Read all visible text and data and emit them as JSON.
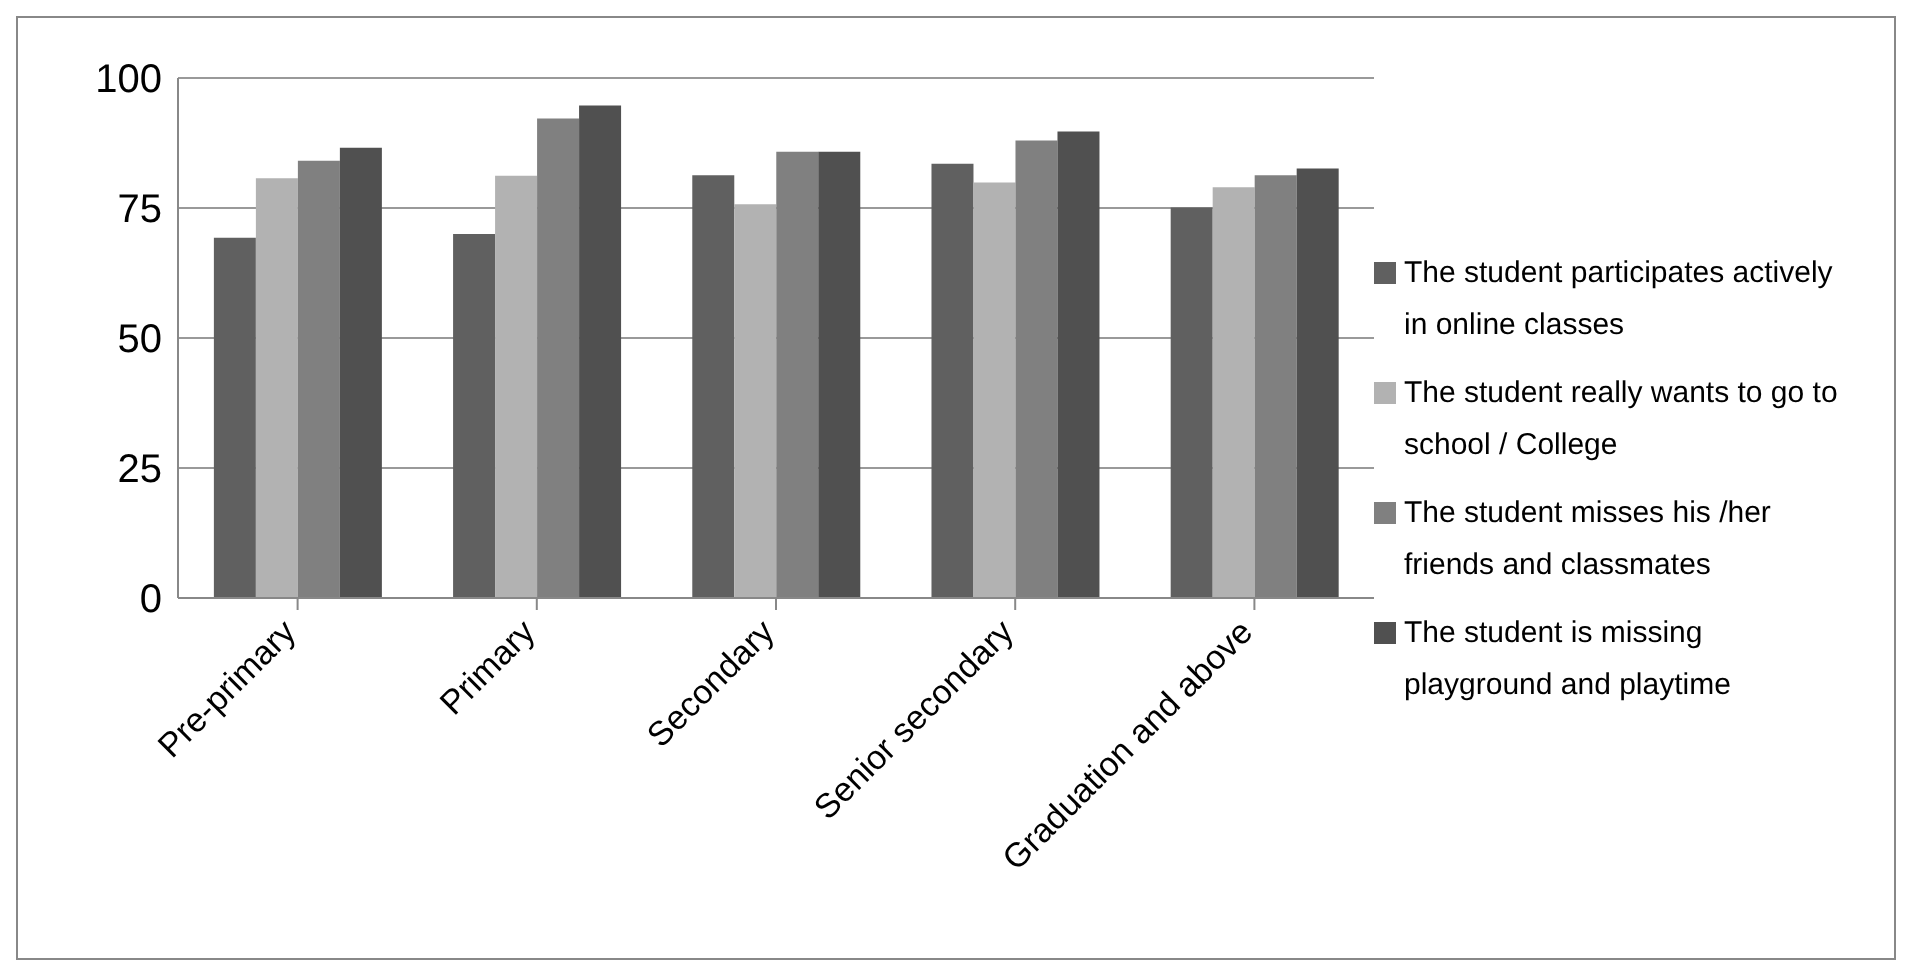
{
  "chart_data": {
    "type": "bar",
    "categories": [
      "Pre-primary",
      "Primary",
      "Secondary",
      "Senior secondary",
      "Graduation and above"
    ],
    "series": [
      {
        "name": "The student participates actively in online classes",
        "color": "#606060",
        "values": [
          69.3,
          70,
          81.3,
          83.5,
          75.1
        ]
      },
      {
        "name": "The student really wants to go to school / College",
        "color": "#b2b2b2",
        "values": [
          80.7,
          81.2,
          75.7,
          79.9,
          79
        ]
      },
      {
        "name": "The student misses his /her friends and classmates",
        "color": "#808080",
        "values": [
          84.1,
          92.2,
          85.8,
          88,
          81.3
        ]
      },
      {
        "name": "The student is missing playground and playtime",
        "color": "#505050",
        "values": [
          86.6,
          94.7,
          85.8,
          89.7,
          82.6
        ]
      }
    ],
    "ylim": [
      0,
      100
    ],
    "yticks": [
      0,
      25,
      50,
      75,
      100
    ],
    "grid": "y",
    "legend": "right"
  }
}
